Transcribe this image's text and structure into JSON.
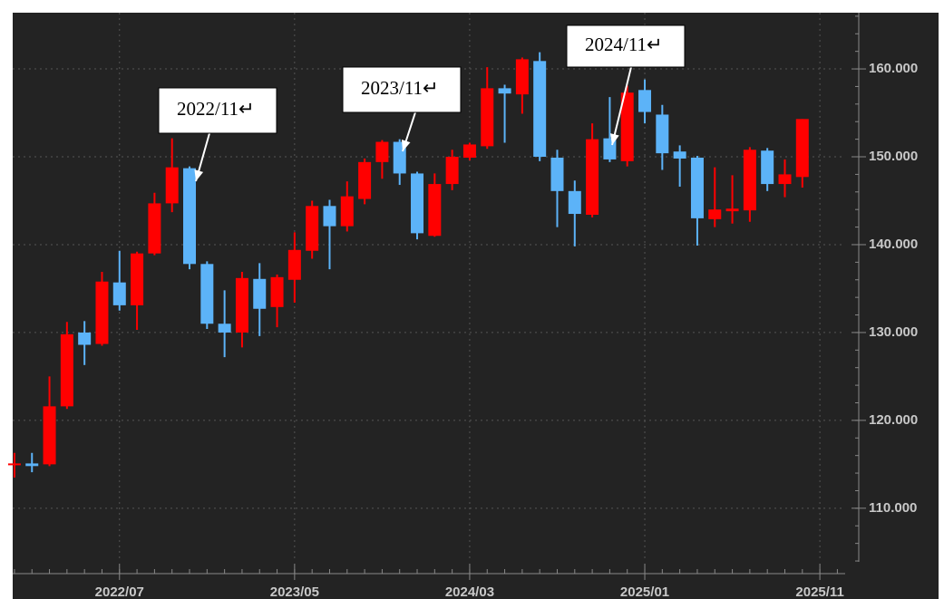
{
  "chart_data": {
    "type": "candlestick",
    "x": [
      0,
      1,
      2,
      3,
      4,
      5,
      6,
      7,
      8,
      9,
      10,
      11,
      12,
      13,
      14,
      15,
      16,
      17,
      18,
      19,
      20,
      21,
      22,
      23,
      24,
      25,
      26,
      27,
      28,
      29,
      30,
      31,
      32,
      33,
      34,
      35,
      36,
      37,
      38,
      39,
      40,
      41,
      42,
      43,
      44,
      45
    ],
    "open": [
      115.0,
      115.1,
      115.0,
      121.6,
      130.0,
      128.7,
      135.7,
      133.1,
      139.0,
      144.7,
      148.7,
      137.8,
      131.0,
      130.0,
      136.1,
      132.9,
      136.0,
      139.3,
      144.4,
      142.1,
      145.2,
      149.4,
      151.7,
      148.1,
      141.0,
      146.9,
      149.9,
      151.2,
      157.8,
      157.1,
      160.9,
      149.9,
      146.1,
      143.4,
      152.1,
      149.5,
      157.6,
      154.8,
      150.6,
      149.9,
      142.9,
      143.8,
      143.9,
      150.7,
      146.9,
      147.7
    ],
    "high": [
      116.3,
      116.3,
      125.0,
      131.2,
      131.3,
      136.9,
      139.3,
      139.2,
      145.9,
      152.1,
      148.9,
      138.1,
      134.8,
      136.9,
      137.9,
      136.6,
      141.4,
      145.0,
      145.1,
      147.2,
      149.8,
      151.9,
      152.0,
      148.3,
      148.1,
      150.8,
      151.6,
      160.2,
      158.2,
      161.3,
      161.9,
      150.8,
      147.3,
      153.8,
      156.8,
      158.1,
      158.8,
      155.9,
      151.3,
      150.1,
      148.8,
      147.9,
      151.1,
      151.0,
      149.7,
      154.3
    ],
    "low": [
      113.5,
      114.1,
      114.8,
      121.3,
      126.3,
      128.5,
      132.5,
      130.3,
      138.8,
      143.7,
      137.2,
      130.4,
      127.2,
      128.3,
      129.6,
      130.6,
      133.4,
      138.4,
      137.2,
      141.5,
      144.6,
      147.5,
      146.8,
      140.6,
      140.9,
      146.2,
      149.6,
      150.9,
      151.6,
      154.9,
      149.5,
      142.0,
      139.8,
      143.1,
      149.4,
      148.9,
      153.8,
      148.5,
      146.6,
      139.9,
      142.0,
      142.4,
      142.6,
      146.1,
      145.4,
      146.5
    ],
    "close": [
      115.1,
      114.8,
      121.6,
      129.8,
      128.6,
      135.8,
      133.1,
      139.0,
      144.7,
      148.8,
      137.8,
      131.0,
      130.0,
      136.2,
      132.7,
      136.3,
      139.4,
      144.4,
      142.1,
      145.5,
      149.4,
      151.7,
      148.1,
      141.3,
      146.9,
      150.0,
      151.4,
      157.8,
      157.2,
      161.1,
      150.0,
      146.1,
      143.5,
      152.0,
      149.7,
      157.3,
      155.1,
      150.4,
      149.8,
      143.0,
      144.0,
      144.1,
      150.8,
      146.9,
      148.0,
      154.3
    ],
    "up_color": "#ff0000",
    "down_color": "#5cb3f8",
    "xlim": [
      -0.1,
      47.6
    ],
    "xticks": [
      {
        "value": 6,
        "label": "2022/07"
      },
      {
        "value": 16,
        "label": "2023/05"
      },
      {
        "value": 26,
        "label": "2024/03"
      },
      {
        "value": 36,
        "label": "2025/01"
      },
      {
        "value": 46,
        "label": "2025/11"
      }
    ],
    "ylim": [
      103.9,
      166.4
    ],
    "yticks": [
      {
        "value": 110,
        "label": "110.000"
      },
      {
        "value": 120,
        "label": "120.000"
      },
      {
        "value": 130,
        "label": "130.000"
      },
      {
        "value": 140,
        "label": "140.000"
      },
      {
        "value": 150,
        "label": "150.000"
      },
      {
        "value": 160,
        "label": "160.000"
      }
    ],
    "grid": true,
    "annotations": [
      {
        "text": "2022/11↵"
      },
      {
        "text": "2023/11↵"
      },
      {
        "text": "2024/11↵"
      }
    ]
  }
}
